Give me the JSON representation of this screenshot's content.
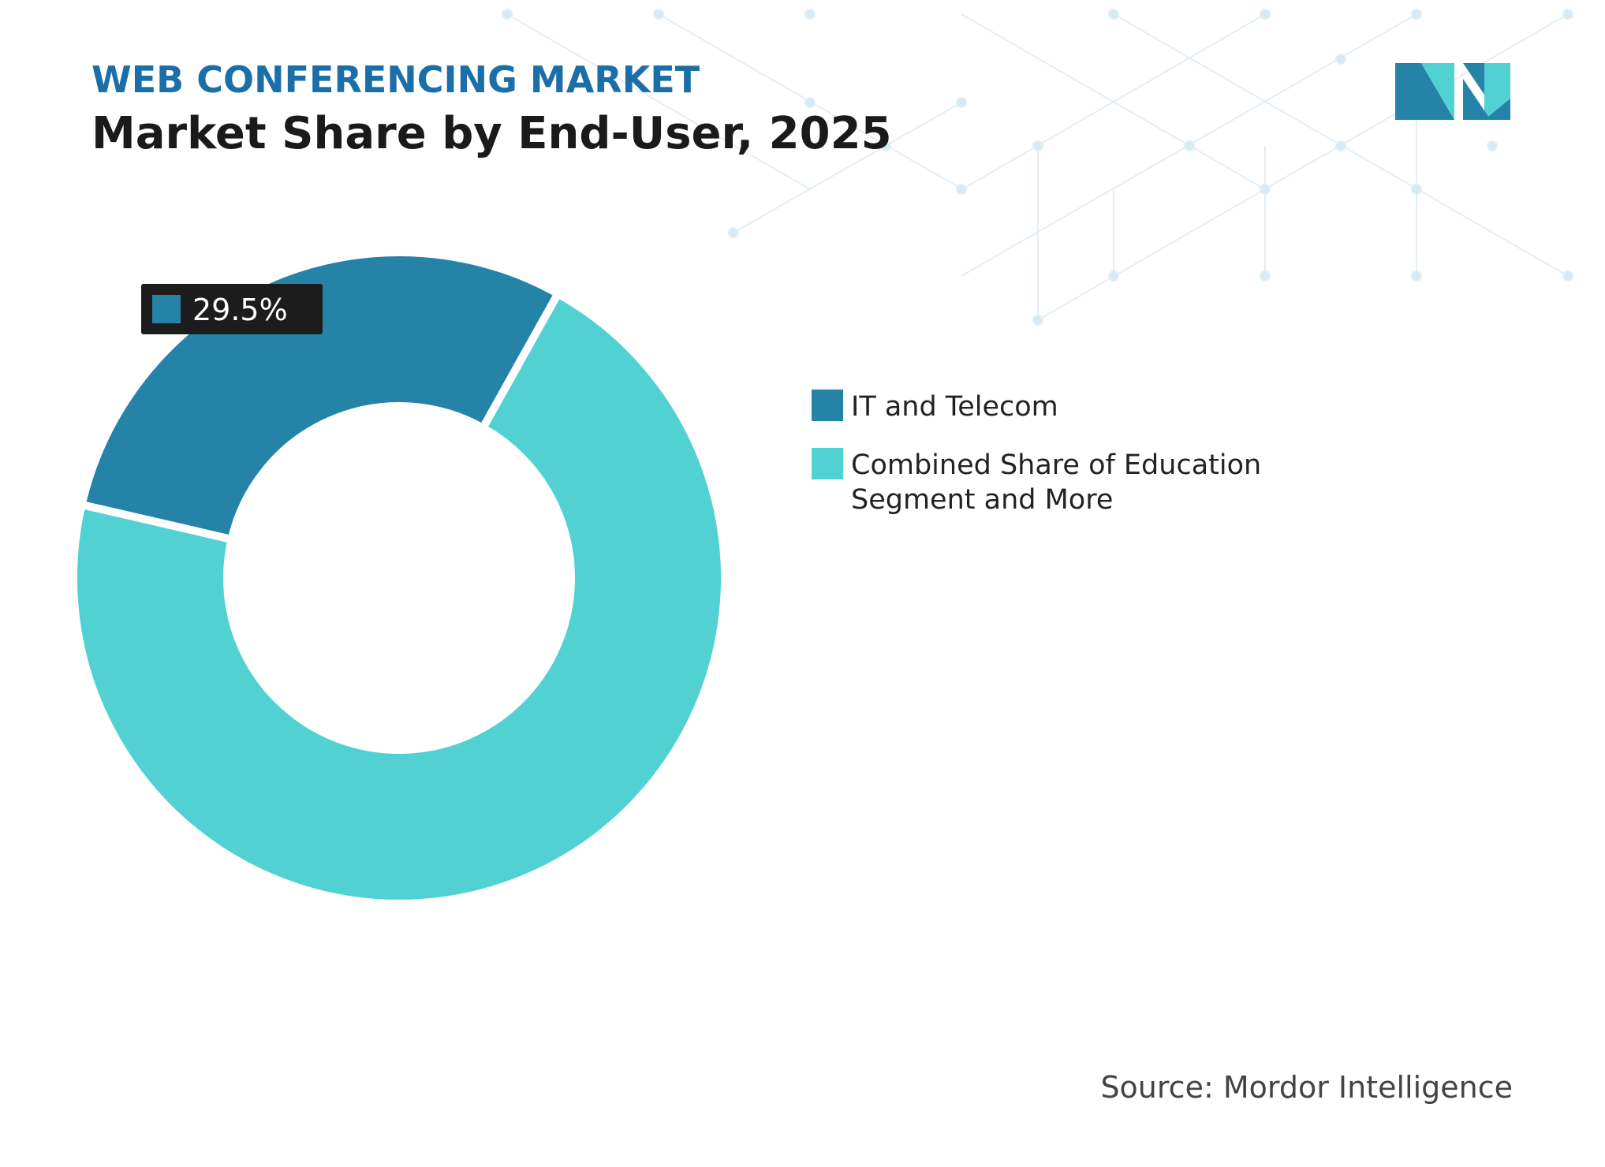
{
  "chart_data": {
    "type": "donut",
    "subtitle": "WEB CONFERENCING MARKET",
    "title": "Market Share by End-User, 2025",
    "categories": [
      "IT and Telecom",
      "Combined Share of Education Segment and More"
    ],
    "values": [
      29.5,
      70.5
    ],
    "value_labels": [
      "29.5%",
      null
    ],
    "colors": [
      "#2683a8",
      "#52d1d3"
    ],
    "source": "Source: Mordor Intelligence"
  }
}
